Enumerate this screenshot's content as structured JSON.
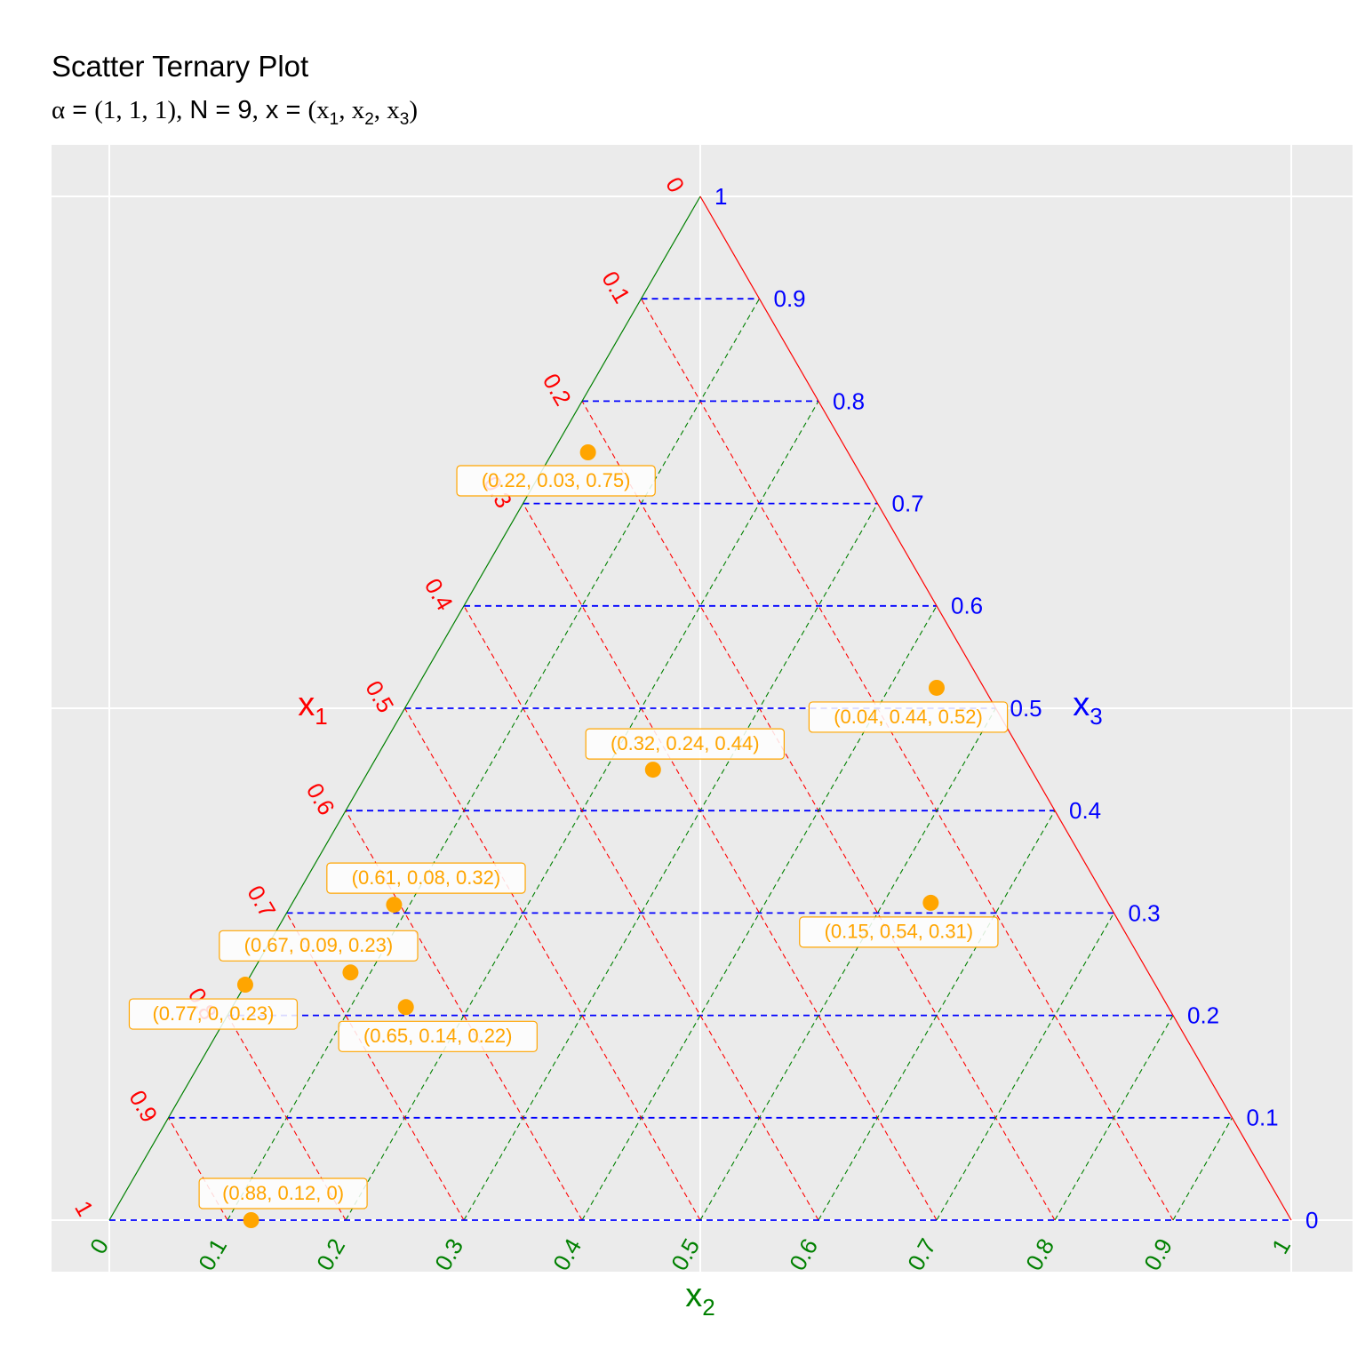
{
  "title": "Scatter Ternary Plot",
  "subtitle": {
    "alpha_symbol": "α",
    "eq": "=",
    "alpha_value": "(1, 1, 1)",
    "comma": ",",
    "n_label": "N",
    "n_value": "9",
    "x_label": "x",
    "x_open": "(x",
    "x1_sub": "1",
    "x_sep1": ", x",
    "x2_sub": "2",
    "x_sep2": ", x",
    "x3_sub": "3",
    "x_close": ")"
  },
  "colors": {
    "x1": "#ff0000",
    "x2": "#008000",
    "x3": "#0000ff",
    "points": "#ffa500",
    "panel": "#ebebeb",
    "panel_grid": "#ffffff"
  },
  "chart_data": {
    "type": "scatter",
    "subtype": "ternary",
    "axes": {
      "x1": {
        "label": "x",
        "sub": "1",
        "ticks": [
          "0",
          "0.1",
          "0.2",
          "0.3",
          "0.4",
          "0.5",
          "0.6",
          "0.7",
          "0.8",
          "0.9",
          "1"
        ]
      },
      "x2": {
        "label": "x",
        "sub": "2",
        "ticks": [
          "0",
          "0.1",
          "0.2",
          "0.3",
          "0.4",
          "0.5",
          "0.6",
          "0.7",
          "0.8",
          "0.9",
          "1"
        ]
      },
      "x3": {
        "label": "x",
        "sub": "3",
        "ticks": [
          "0",
          "0.1",
          "0.2",
          "0.3",
          "0.4",
          "0.5",
          "0.6",
          "0.7",
          "0.8",
          "0.9",
          "1"
        ]
      }
    },
    "grid": true,
    "points": [
      {
        "x1": 0.22,
        "x2": 0.03,
        "x3": 0.75,
        "label": "(0.22, 0.03, 0.75)"
      },
      {
        "x1": 0.04,
        "x2": 0.44,
        "x3": 0.52,
        "label": "(0.04, 0.44, 0.52)"
      },
      {
        "x1": 0.32,
        "x2": 0.24,
        "x3": 0.44,
        "label": "(0.32, 0.24, 0.44)"
      },
      {
        "x1": 0.61,
        "x2": 0.08,
        "x3": 0.32,
        "label": "(0.61, 0.08, 0.32)"
      },
      {
        "x1": 0.15,
        "x2": 0.54,
        "x3": 0.31,
        "label": "(0.15, 0.54, 0.31)"
      },
      {
        "x1": 0.67,
        "x2": 0.09,
        "x3": 0.23,
        "label": "(0.67, 0.09, 0.23)"
      },
      {
        "x1": 0.77,
        "x2": 0,
        "x3": 0.23,
        "label": "(0.77, 0, 0.23)"
      },
      {
        "x1": 0.65,
        "x2": 0.14,
        "x3": 0.22,
        "label": "(0.65, 0.14, 0.22)"
      },
      {
        "x1": 0.88,
        "x2": 0.12,
        "x3": 0,
        "label": "(0.88, 0.12, 0)"
      }
    ]
  }
}
